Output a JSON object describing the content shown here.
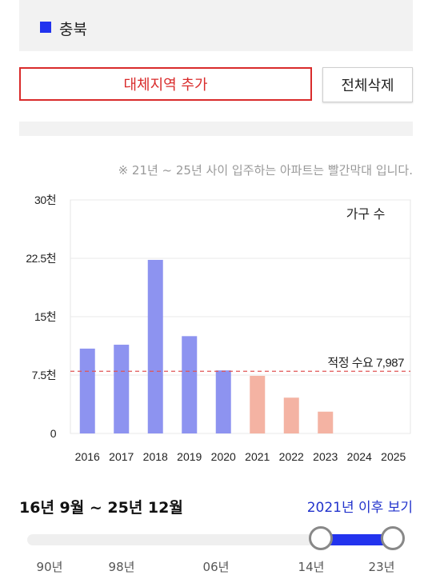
{
  "region": {
    "name": "충북",
    "color": "#2233ee"
  },
  "buttons": {
    "add_region": "대체지역 추가",
    "clear_all": "전체삭제"
  },
  "notice": "※ 21년 ~ 25년 사이 입주하는 아파트는 빨간막대 입니다.",
  "chart_data": {
    "type": "bar",
    "title": "",
    "legend_label": "가구 수",
    "xlabel": "",
    "ylabel": "",
    "ylim": [
      0,
      30000
    ],
    "y_ticks": [
      0,
      7500,
      15000,
      22500,
      30000
    ],
    "y_tick_labels": [
      "0",
      "7.5천",
      "15천",
      "22.5천",
      "30천"
    ],
    "categories": [
      "2016",
      "2017",
      "2018",
      "2019",
      "2020",
      "2021",
      "2022",
      "2023",
      "2024",
      "2025"
    ],
    "values": [
      10900,
      11400,
      22300,
      12500,
      8100,
      7400,
      4600,
      2800,
      0,
      0
    ],
    "bar_colors": [
      "#8d93f0",
      "#8d93f0",
      "#8d93f0",
      "#8d93f0",
      "#8d93f0",
      "#f4b3a3",
      "#f4b3a3",
      "#f4b3a3",
      "#f4b3a3",
      "#f4b3a3"
    ],
    "reference_line": {
      "value": 7987,
      "label": "적정 수요 7,987",
      "color": "#e05555"
    },
    "grid": true
  },
  "period": {
    "label": "16년 9월 ~ 25년 12월",
    "after_link": "2021년 이후 보기"
  },
  "slider": {
    "tick_labels": [
      "90년",
      "98년",
      "06년",
      "14년",
      "23년"
    ],
    "selected_range": [
      "14년",
      "23년"
    ],
    "fill_color": "#2233ee"
  }
}
